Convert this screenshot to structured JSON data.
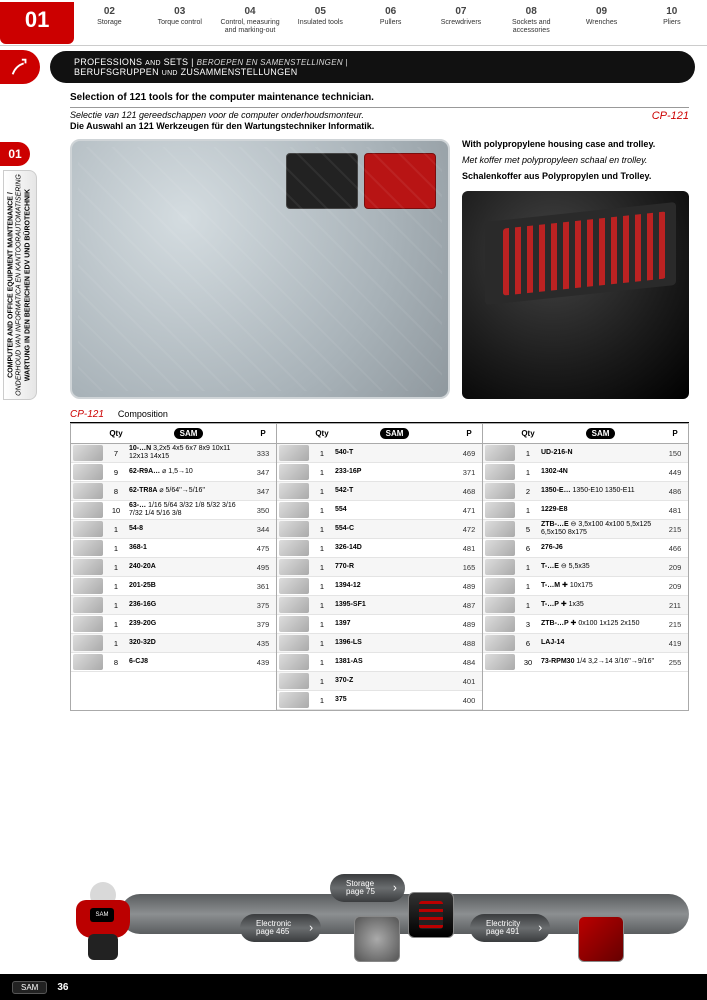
{
  "tabs": [
    {
      "num": "01",
      "label": ""
    },
    {
      "num": "02",
      "label": "Storage"
    },
    {
      "num": "03",
      "label": "Torque control"
    },
    {
      "num": "04",
      "label": "Control, measuring and marking-out"
    },
    {
      "num": "05",
      "label": "Insulated tools"
    },
    {
      "num": "06",
      "label": "Pullers"
    },
    {
      "num": "07",
      "label": "Screwdrivers"
    },
    {
      "num": "08",
      "label": "Sockets and accessories"
    },
    {
      "num": "09",
      "label": "Wrenches"
    },
    {
      "num": "10",
      "label": "Pliers"
    }
  ],
  "ribbon": {
    "line1a": "PROFESSIONS ",
    "line1b": "AND",
    "line1c": " SETS | ",
    "line1_it": "BEROEPEN EN SAMENSTELLINGEN |",
    "line2": "BERUFSGRUPPEN ",
    "line2b": "UND",
    "line2c": " ZUSAMMENSTELLUNGEN"
  },
  "chapterBadge": "01",
  "sidelabel": {
    "en": "COMPUTER AND OFFICE EQUIPMENT MAINTENANCE /",
    "nl": "ONDERHOUD VAN INFORMATICA EN KANTOORAUTOMATISERING",
    "de": "WARTUNG IN DEN BEREICHEN EDV UND BÜROTECHNIK"
  },
  "headline": "Selection of 121 tools for the computer maintenance technician.",
  "sub_nl": "Selectie van 121 gereedschappen voor de computer onderhoudsmonteur.",
  "sub_de": "Die Auswahl an 121 Werkzeugen für den Wartungstechniker Informatik.",
  "sku": "CP-121",
  "desc_en": "With polypropylene housing case and trolley.",
  "desc_nl": "Met koffer met polypropyleen schaal en trolley.",
  "desc_de": "Schalenkoffer aus Polypropylen und Trolley.",
  "comp": {
    "sku": "CP-121",
    "label": "Composition"
  },
  "table_headers": {
    "qty": "Qty",
    "p": "P",
    "brand": "SAM"
  },
  "cols": [
    [
      {
        "qty": "7",
        "ref": "10-…N 3,2x5 4x5 6x7 8x9 10x11 12x13 14x15",
        "p": "333"
      },
      {
        "qty": "9",
        "ref": "62-R9A… ⌀ 1,5→10",
        "p": "347"
      },
      {
        "qty": "8",
        "ref": "62-TR8A ⌀ 5/64''→5/16''",
        "p": "347"
      },
      {
        "qty": "10",
        "ref": "63-… 1/16 5/64 3/32 1/8 5/32 3/16 7/32 1/4 5/16 3/8",
        "p": "350"
      },
      {
        "qty": "1",
        "ref": "54-8",
        "p": "344"
      },
      {
        "qty": "1",
        "ref": "368-1",
        "p": "475"
      },
      {
        "qty": "1",
        "ref": "240-20A",
        "p": "495"
      },
      {
        "qty": "1",
        "ref": "201-25B",
        "p": "361"
      },
      {
        "qty": "1",
        "ref": "236-16G",
        "p": "375"
      },
      {
        "qty": "1",
        "ref": "239-20G",
        "p": "379"
      },
      {
        "qty": "1",
        "ref": "320-32D",
        "p": "435"
      },
      {
        "qty": "8",
        "ref": "6-CJ8",
        "p": "439"
      }
    ],
    [
      {
        "qty": "1",
        "ref": "540-T",
        "p": "469"
      },
      {
        "qty": "1",
        "ref": "233-16P",
        "p": "371"
      },
      {
        "qty": "1",
        "ref": "542-T",
        "p": "468"
      },
      {
        "qty": "1",
        "ref": "554",
        "p": "471"
      },
      {
        "qty": "1",
        "ref": "554-C",
        "p": "472"
      },
      {
        "qty": "1",
        "ref": "326-14D",
        "p": "481"
      },
      {
        "qty": "1",
        "ref": "770-R",
        "p": "165"
      },
      {
        "qty": "1",
        "ref": "1394-12",
        "p": "489"
      },
      {
        "qty": "1",
        "ref": "1395-SF1",
        "p": "487"
      },
      {
        "qty": "1",
        "ref": "1397",
        "p": "489"
      },
      {
        "qty": "1",
        "ref": "1396-LS",
        "p": "488"
      },
      {
        "qty": "1",
        "ref": "1381-AS",
        "p": "484"
      },
      {
        "qty": "1",
        "ref": "370-Z",
        "p": "401"
      },
      {
        "qty": "1",
        "ref": "375",
        "p": "400"
      }
    ],
    [
      {
        "qty": "1",
        "ref": "UD-216-N",
        "p": "150"
      },
      {
        "qty": "1",
        "ref": "1302-4N",
        "p": "449"
      },
      {
        "qty": "2",
        "ref": "1350-E… 1350-E10 1350-E11",
        "p": "486"
      },
      {
        "qty": "1",
        "ref": "1229-E8",
        "p": "481"
      },
      {
        "qty": "5",
        "ref": "ZTB-…E ⊖ 3,5x100 4x100 5,5x125 6,5x150 8x175",
        "p": "215"
      },
      {
        "qty": "6",
        "ref": "276-J6",
        "p": "466"
      },
      {
        "qty": "1",
        "ref": "T-…E ⊖ 5,5x35",
        "p": "209"
      },
      {
        "qty": "1",
        "ref": "T-…M ✚ 10x175",
        "p": "209"
      },
      {
        "qty": "1",
        "ref": "T-…P ✚ 1x35",
        "p": "211"
      },
      {
        "qty": "3",
        "ref": "ZTB-…P ✚ 0x100 1x125 2x150",
        "p": "215"
      },
      {
        "qty": "6",
        "ref": "LAJ-14",
        "p": "419"
      },
      {
        "qty": "30",
        "ref": "73-RPM30 1/4 3,2→14 3/16''→9/16''",
        "p": "255"
      }
    ]
  ],
  "promo": {
    "storage": {
      "t": "Storage",
      "p": "page 75"
    },
    "electronic": {
      "t": "Electronic",
      "p": "page 465"
    },
    "electricity": {
      "t": "Electricity",
      "p": "page 491"
    },
    "mascot_brand": "SAM"
  },
  "footer": {
    "brand": "SAM",
    "page": "36"
  },
  "colors": {
    "red": "#c00",
    "black": "#111",
    "grey": "#8c8f91"
  }
}
